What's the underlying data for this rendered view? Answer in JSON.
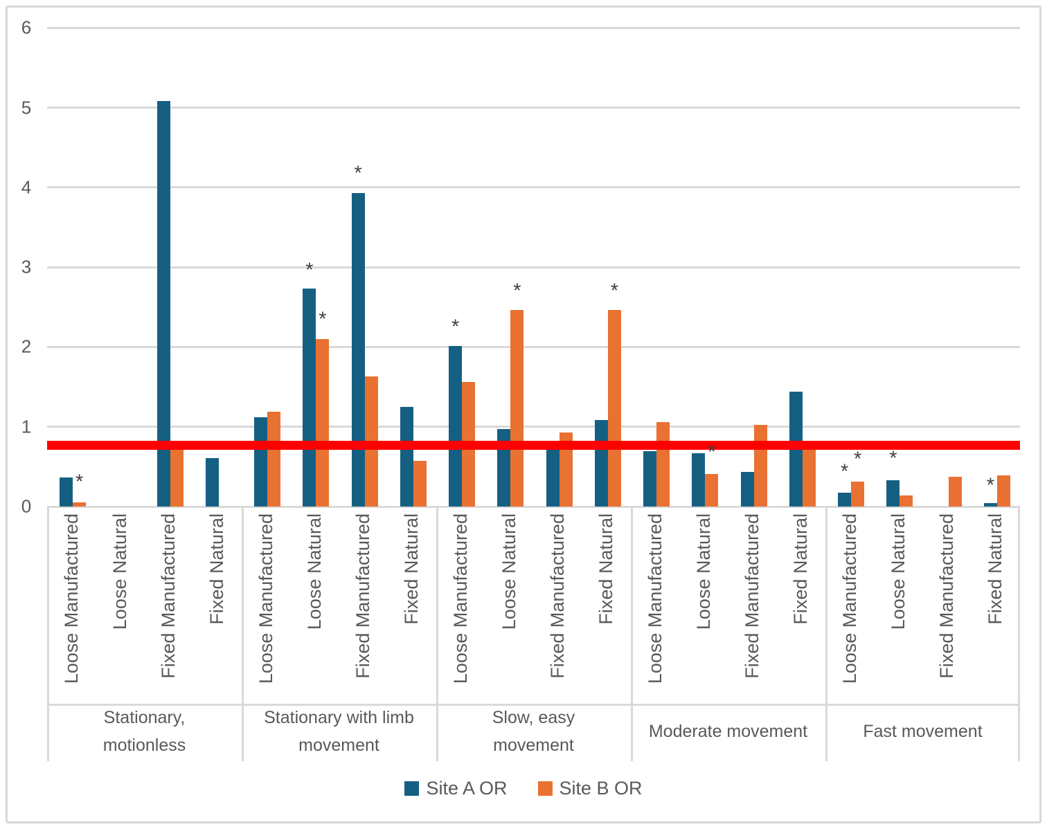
{
  "chart_data": {
    "type": "bar",
    "title": "",
    "xlabel": "",
    "ylabel": "",
    "ylim": [
      0,
      6
    ],
    "yticks": [
      0,
      1,
      2,
      3,
      4,
      5,
      6
    ],
    "grid": true,
    "legend_position": "bottom",
    "colors": {
      "site_a": "#156082",
      "site_b": "#E97132",
      "reference_line": "#FF0000",
      "gridline": "#D9D9D9",
      "axis_text": "#595959",
      "annotation": "#404040"
    },
    "group_labels": [
      "Stationary, motionless",
      "Stationary with limb movement",
      "Slow, easy movement",
      "Moderate movement",
      "Fast movement"
    ],
    "categories": [
      "Loose Manufactured",
      "Loose Natural",
      "Fixed Manufactured",
      "Fixed Natural"
    ],
    "series": [
      {
        "name": "Site A OR",
        "color": "#156082",
        "values": [
          [
            0.36,
            0,
            5.08,
            0.61
          ],
          [
            1.12,
            2.73,
            3.93,
            1.25
          ],
          [
            2.01,
            0.97,
            0.72,
            1.08
          ],
          [
            0.69,
            0.67,
            0.43,
            1.44
          ],
          [
            0.17,
            0.33,
            0,
            0.04
          ]
        ]
      },
      {
        "name": "Site B OR",
        "color": "#E97132",
        "values": [
          [
            0.05,
            0,
            0.73,
            0
          ],
          [
            1.19,
            2.1,
            1.63,
            0.57
          ],
          [
            1.56,
            2.46,
            0.93,
            2.46
          ],
          [
            1.06,
            0.41,
            1.02,
            0.74
          ],
          [
            0.31,
            0.14,
            0.37,
            0.39
          ]
        ]
      }
    ],
    "reference_line": {
      "value": 0.77,
      "color": "#FF0000"
    },
    "annotations": [
      {
        "symbol": "*",
        "group": 0,
        "category": 0,
        "series": 1,
        "y": 0.3
      },
      {
        "symbol": "*",
        "group": 1,
        "category": 1,
        "series": 0,
        "y": 2.96
      },
      {
        "symbol": "*",
        "group": 1,
        "category": 1,
        "series": 1,
        "y": 2.34
      },
      {
        "symbol": "*",
        "group": 1,
        "category": 2,
        "series": 0,
        "y": 4.17
      },
      {
        "symbol": "*",
        "group": 2,
        "category": 0,
        "series": 0,
        "y": 2.25
      },
      {
        "symbol": "*",
        "group": 2,
        "category": 1,
        "series": 1,
        "y": 2.7
      },
      {
        "symbol": "*",
        "group": 2,
        "category": 3,
        "series": 1,
        "y": 2.7
      },
      {
        "symbol": "*",
        "group": 3,
        "category": 1,
        "series": 1,
        "y": 0.68
      },
      {
        "symbol": "*",
        "group": 4,
        "category": 0,
        "series": 0,
        "y": 0.43
      },
      {
        "symbol": "*",
        "group": 4,
        "category": 0,
        "series": 1,
        "y": 0.59
      },
      {
        "symbol": "*",
        "group": 4,
        "category": 1,
        "series": 0,
        "y": 0.6
      },
      {
        "symbol": "*",
        "group": 4,
        "category": 3,
        "series": 0,
        "y": 0.26
      }
    ]
  }
}
